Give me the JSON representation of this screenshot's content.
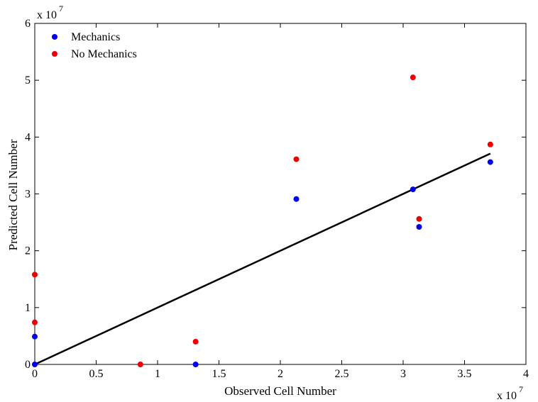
{
  "chart_data": {
    "type": "scatter",
    "title": "",
    "xlabel": "Observed Cell Number",
    "ylabel": "Predicted Cell Number",
    "x_multiplier_label": "x 10",
    "x_multiplier_exponent": "7",
    "y_multiplier_label": "x 10",
    "y_multiplier_exponent": "7",
    "xlim": [
      0,
      4
    ],
    "ylim": [
      0,
      6
    ],
    "x_ticks": [
      0,
      0.5,
      1,
      1.5,
      2,
      2.5,
      3,
      3.5,
      4
    ],
    "y_ticks": [
      0,
      1,
      2,
      3,
      4,
      5,
      6
    ],
    "x_tick_labels": [
      "0",
      "0.5",
      "1",
      "1.5",
      "2",
      "2.5",
      "3",
      "3.5",
      "4"
    ],
    "y_tick_labels": [
      "0",
      "1",
      "2",
      "3",
      "4",
      "5",
      "6"
    ],
    "grid": false,
    "legend_position": "top-left",
    "series": [
      {
        "name": "Mechanics",
        "color": "#0000ee",
        "points": [
          [
            0,
            0.49
          ],
          [
            0,
            0
          ],
          [
            1.31,
            0
          ],
          [
            2.13,
            2.91
          ],
          [
            3.08,
            3.08
          ],
          [
            3.13,
            2.42
          ],
          [
            3.71,
            3.56
          ]
        ]
      },
      {
        "name": "No Mechanics",
        "color": "#ee0000",
        "points": [
          [
            0,
            1.58
          ],
          [
            0,
            0.74
          ],
          [
            0.86,
            0
          ],
          [
            1.31,
            0.4
          ],
          [
            2.13,
            3.61
          ],
          [
            3.08,
            5.05
          ],
          [
            3.13,
            2.56
          ],
          [
            3.71,
            3.87
          ]
        ]
      }
    ],
    "fit_line": {
      "color": "#000000",
      "points": [
        [
          0,
          0
        ],
        [
          3.71,
          3.71
        ]
      ]
    }
  }
}
